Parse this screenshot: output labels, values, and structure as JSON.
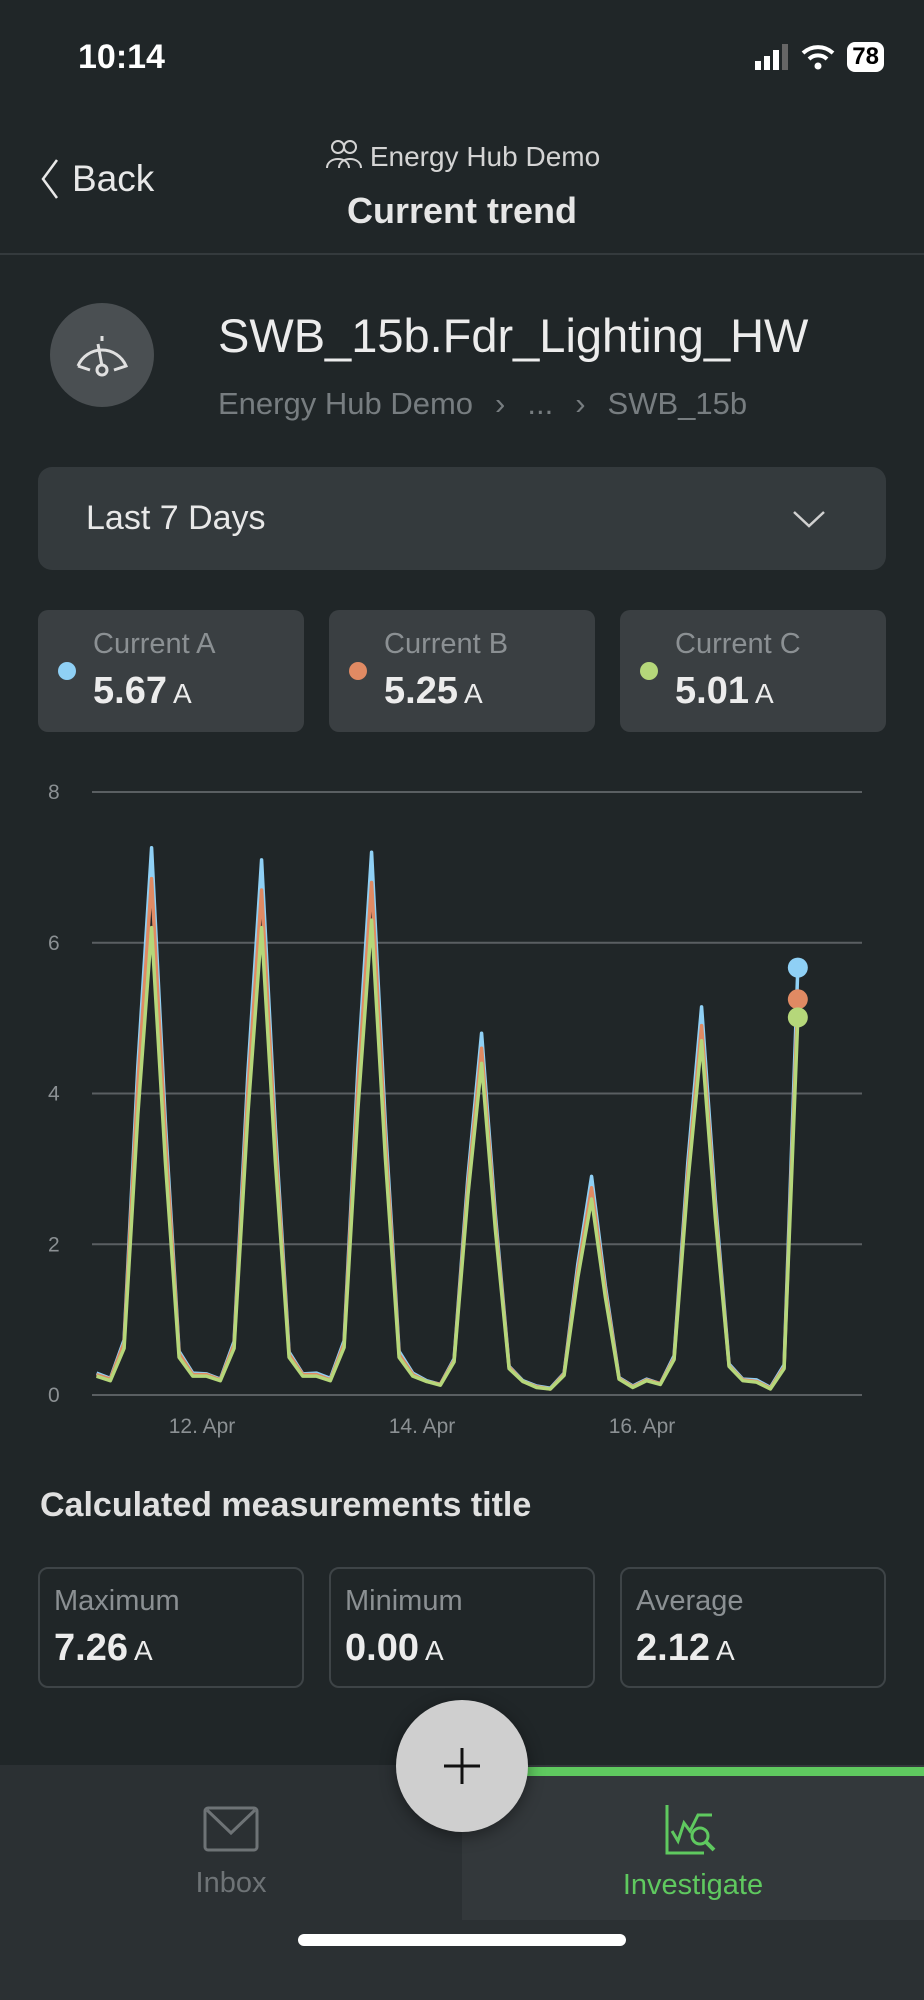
{
  "status_bar": {
    "time": "10:14",
    "battery": "78"
  },
  "header": {
    "back_label": "Back",
    "org": "Energy Hub Demo",
    "title": "Current trend"
  },
  "asset": {
    "name": "SWB_15b.Fdr_Lighting_HW",
    "breadcrumb": [
      "Energy Hub Demo",
      "...",
      "SWB_15b"
    ]
  },
  "range": {
    "selected": "Last 7 Days"
  },
  "cards": [
    {
      "label": "Current A",
      "value": "5.67",
      "unit": "A",
      "color": "#8fd0f5"
    },
    {
      "label": "Current B",
      "value": "5.25",
      "unit": "A",
      "color": "#e08a63"
    },
    {
      "label": "Current C",
      "value": "5.01",
      "unit": "A",
      "color": "#b5d77a"
    }
  ],
  "chart_data": {
    "type": "line",
    "x_unit": "hours since 11 Apr 00:00",
    "xlim": [
      0,
      168
    ],
    "ylim": [
      0,
      8
    ],
    "yticks": [
      "0",
      "2",
      "4",
      "6",
      "8"
    ],
    "xticks": [
      {
        "x": 24,
        "label": "12. Apr"
      },
      {
        "x": 72,
        "label": "14. Apr"
      },
      {
        "x": 120,
        "label": "16. Apr"
      }
    ],
    "grid": true,
    "x": [
      1,
      4,
      7,
      10,
      13,
      16,
      19,
      22,
      25,
      28,
      31,
      34,
      37,
      40,
      43,
      46,
      49,
      52,
      55,
      58,
      61,
      64,
      67,
      70,
      73,
      76,
      79,
      82,
      85,
      88,
      91,
      94,
      97,
      100,
      103,
      106,
      109,
      112,
      115,
      118,
      121,
      124,
      127,
      130,
      133,
      136,
      139,
      142,
      145,
      148,
      151,
      154
    ],
    "series": [
      {
        "name": "Current A",
        "color": "#8fd0f5",
        "values": [
          0.29,
          0.22,
          0.73,
          4.36,
          7.26,
          3.63,
          0.58,
          0.29,
          0.28,
          0.21,
          0.71,
          4.26,
          7.1,
          3.55,
          0.57,
          0.28,
          0.29,
          0.22,
          0.72,
          4.32,
          7.2,
          3.6,
          0.58,
          0.29,
          0.19,
          0.14,
          0.48,
          2.88,
          4.8,
          2.4,
          0.38,
          0.19,
          0.12,
          0.09,
          0.29,
          1.74,
          2.9,
          1.45,
          0.23,
          0.12,
          0.21,
          0.15,
          0.52,
          3.09,
          5.15,
          2.58,
          0.41,
          0.21,
          0.2,
          0.1,
          0.4,
          5.67
        ]
      },
      {
        "name": "Current B",
        "color": "#e08a63",
        "values": [
          0.27,
          0.21,
          0.69,
          4.11,
          6.85,
          3.43,
          0.55,
          0.27,
          0.27,
          0.2,
          0.67,
          4.02,
          6.7,
          3.35,
          0.54,
          0.27,
          0.27,
          0.2,
          0.68,
          4.08,
          6.8,
          3.4,
          0.54,
          0.27,
          0.18,
          0.14,
          0.46,
          2.76,
          4.6,
          2.3,
          0.37,
          0.18,
          0.11,
          0.08,
          0.28,
          1.65,
          2.75,
          1.38,
          0.22,
          0.11,
          0.2,
          0.15,
          0.49,
          2.94,
          4.9,
          2.45,
          0.39,
          0.2,
          0.18,
          0.09,
          0.37,
          5.25
        ]
      },
      {
        "name": "Current C",
        "color": "#b5d77a",
        "values": [
          0.25,
          0.19,
          0.62,
          3.72,
          6.2,
          3.1,
          0.5,
          0.25,
          0.25,
          0.19,
          0.62,
          3.72,
          6.2,
          3.1,
          0.5,
          0.25,
          0.25,
          0.19,
          0.63,
          3.78,
          6.3,
          3.15,
          0.5,
          0.25,
          0.18,
          0.13,
          0.44,
          2.64,
          4.4,
          2.2,
          0.35,
          0.18,
          0.1,
          0.08,
          0.26,
          1.56,
          2.6,
          1.3,
          0.21,
          0.1,
          0.19,
          0.14,
          0.47,
          2.82,
          4.7,
          2.35,
          0.38,
          0.19,
          0.17,
          0.08,
          0.35,
          5.01
        ]
      }
    ]
  },
  "calculated": {
    "title": "Calculated measurements title",
    "items": [
      {
        "label": "Maximum",
        "value": "7.26",
        "unit": "A"
      },
      {
        "label": "Minimum",
        "value": "0.00",
        "unit": "A"
      },
      {
        "label": "Average",
        "value": "2.12",
        "unit": "A"
      }
    ]
  },
  "tabs": {
    "inbox": "Inbox",
    "investigate": "Investigate"
  }
}
